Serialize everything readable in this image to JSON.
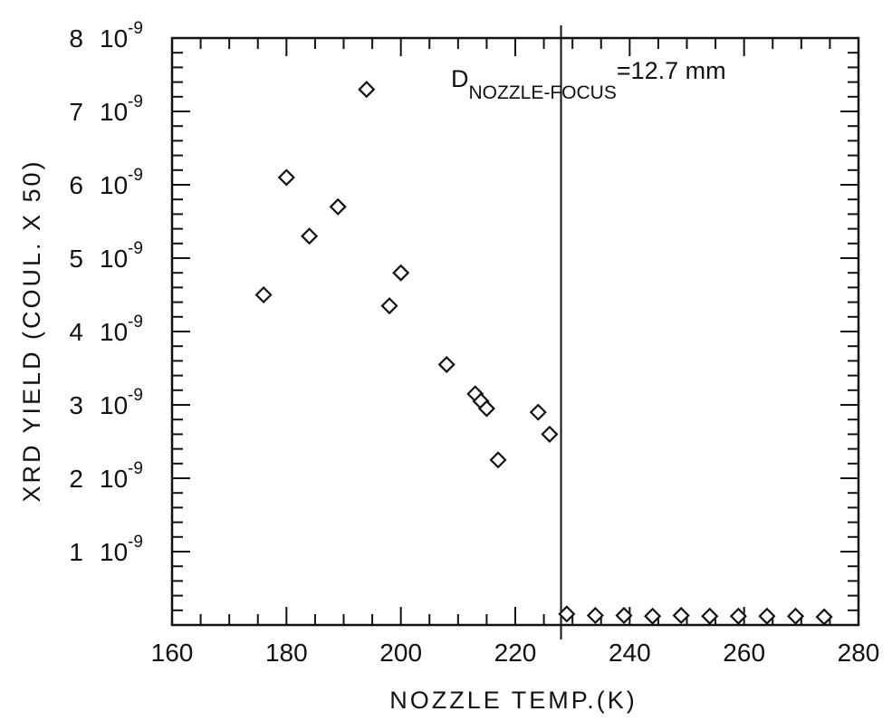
{
  "chart_data": {
    "type": "scatter",
    "xlabel": "NOZZLE TEMP.(K)",
    "ylabel": "XRD YIELD (COUL. X 50)",
    "xlim": [
      160,
      280
    ],
    "ylim": [
      0,
      8
    ],
    "x_ticks": [
      {
        "value": 160,
        "label": "160"
      },
      {
        "value": 180,
        "label": "180"
      },
      {
        "value": 200,
        "label": "200"
      },
      {
        "value": 220,
        "label": "220"
      },
      {
        "value": 240,
        "label": "240"
      },
      {
        "value": 260,
        "label": "260"
      },
      {
        "value": 280,
        "label": "280"
      }
    ],
    "y_ticks": [
      {
        "value": 1,
        "mantissa": "1",
        "base": "10",
        "exp": "-9"
      },
      {
        "value": 2,
        "mantissa": "2",
        "base": "10",
        "exp": "-9"
      },
      {
        "value": 3,
        "mantissa": "3",
        "base": "10",
        "exp": "-9"
      },
      {
        "value": 4,
        "mantissa": "4",
        "base": "10",
        "exp": "-9"
      },
      {
        "value": 5,
        "mantissa": "5",
        "base": "10",
        "exp": "-9"
      },
      {
        "value": 6,
        "mantissa": "6",
        "base": "10",
        "exp": "-9"
      },
      {
        "value": 7,
        "mantissa": "7",
        "base": "10",
        "exp": "-9"
      },
      {
        "value": 8,
        "mantissa": "8",
        "base": "10",
        "exp": "-9"
      }
    ],
    "x_minor_step": 5,
    "y_minor_step": 0.2,
    "marker": "diamond-open",
    "vertical_line_x": 228,
    "annotation": {
      "prefix": "D",
      "subscript": "NOZZLE-FOCUS",
      "suffix": "=12.7 mm"
    },
    "points": [
      {
        "x": 176,
        "y": 4.5
      },
      {
        "x": 180,
        "y": 6.1
      },
      {
        "x": 184,
        "y": 5.3
      },
      {
        "x": 189,
        "y": 5.7
      },
      {
        "x": 194,
        "y": 7.3
      },
      {
        "x": 198,
        "y": 4.35
      },
      {
        "x": 200,
        "y": 4.8
      },
      {
        "x": 208,
        "y": 3.55
      },
      {
        "x": 213,
        "y": 3.15
      },
      {
        "x": 214,
        "y": 3.05
      },
      {
        "x": 215,
        "y": 2.95
      },
      {
        "x": 217,
        "y": 2.25
      },
      {
        "x": 224,
        "y": 2.9
      },
      {
        "x": 226,
        "y": 2.6
      },
      {
        "x": 229,
        "y": 0.15
      },
      {
        "x": 234,
        "y": 0.13
      },
      {
        "x": 239,
        "y": 0.13
      },
      {
        "x": 244,
        "y": 0.12
      },
      {
        "x": 249,
        "y": 0.13
      },
      {
        "x": 254,
        "y": 0.12
      },
      {
        "x": 259,
        "y": 0.12
      },
      {
        "x": 264,
        "y": 0.12
      },
      {
        "x": 269,
        "y": 0.12
      },
      {
        "x": 274,
        "y": 0.11
      }
    ]
  }
}
